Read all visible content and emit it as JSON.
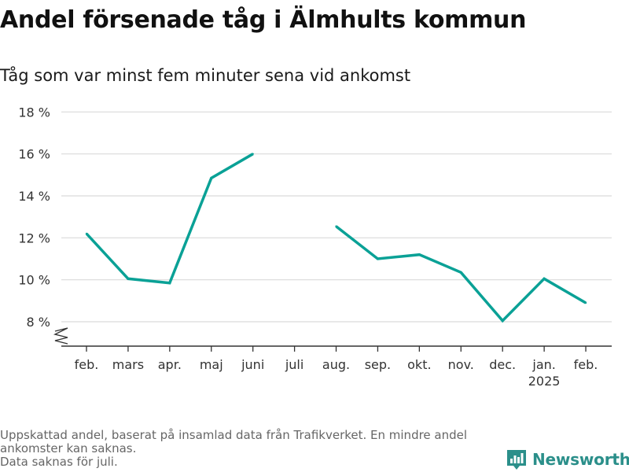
{
  "title": "Andel försenade tåg i Älmhults kommun",
  "subtitle": "Tåg som var minst fem minuter sena vid ankomst",
  "footnote": {
    "line1": "Uppskattad andel, baserat på insamlad data från Trafikverket. En mindre andel ankomster kan saknas.",
    "line2": "Data saknas för juli."
  },
  "brand": {
    "name": "Newsworthy",
    "color": "#2b8f8a"
  },
  "chart_data": {
    "type": "line",
    "title": "Andel försenade tåg i Älmhults kommun",
    "subtitle": "Tåg som var minst fem minuter sena vid ankomst",
    "categories": [
      "feb.",
      "mars",
      "apr.",
      "maj",
      "juni",
      "juli",
      "aug.",
      "sep.",
      "okt.",
      "nov.",
      "dec.",
      "jan.",
      "feb."
    ],
    "year_label": {
      "under_category_index": 11,
      "text": "2025"
    },
    "series": [
      {
        "color": "#0aa196",
        "values": [
          12.2,
          10.05,
          9.85,
          14.85,
          16.0,
          null,
          12.55,
          11.0,
          11.2,
          10.35,
          8.05,
          10.05,
          8.9
        ]
      }
    ],
    "ylim": [
      6.8,
      18
    ],
    "yticks": [
      8,
      10,
      12,
      14,
      16,
      18
    ],
    "ytick_labels": [
      "8 %",
      "10 %",
      "12 %",
      "14 %",
      "16 %",
      "18 %"
    ],
    "xlabel": "",
    "ylabel": "",
    "grid": true,
    "axis_break": true,
    "legend": "none"
  }
}
